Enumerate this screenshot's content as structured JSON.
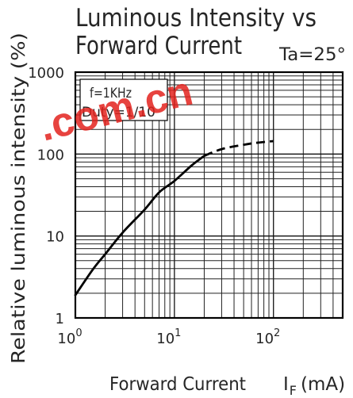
{
  "watermark": {
    "text": ".com.cn",
    "color": "#e3231e"
  },
  "chart_data": {
    "type": "line",
    "title_lines": [
      "Luminous Intensity vs",
      "Forward Current"
    ],
    "annotation": "Ta=25°",
    "note_box": [
      "f=1KHz",
      "Duty=1/10"
    ],
    "xlabel": "Forward Current",
    "xunit": {
      "symbol": "I",
      "subscript": "F",
      "unit": "(mA)"
    },
    "ylabel": "Relative luminous intensity (%)",
    "x_scale": "log",
    "y_scale": "log",
    "xlim": [
      1,
      500
    ],
    "ylim": [
      1,
      1000
    ],
    "grid": true,
    "xticks": [
      {
        "value": 1,
        "base": "10",
        "exp": "0"
      },
      {
        "value": 10,
        "base": "10",
        "exp": "1"
      },
      {
        "value": 100,
        "base": "10",
        "exp": "2"
      }
    ],
    "yticks": [
      {
        "value": 1,
        "label": "1"
      },
      {
        "value": 10,
        "label": "10"
      },
      {
        "value": 100,
        "label": "100"
      },
      {
        "value": 1000,
        "label": "1000"
      }
    ],
    "series": [
      {
        "line_style": "solid",
        "color": "#000000",
        "x": [
          1,
          1.5,
          2,
          3,
          5,
          7,
          10,
          15,
          20
        ],
        "y": [
          1.9,
          3.9,
          6,
          11,
          21,
          34,
          47,
          73,
          95
        ]
      },
      {
        "line_style": "dashed",
        "color": "#000000",
        "x": [
          20,
          30,
          50,
          70,
          100
        ],
        "y": [
          95,
          115,
          130,
          138,
          144
        ]
      }
    ]
  }
}
